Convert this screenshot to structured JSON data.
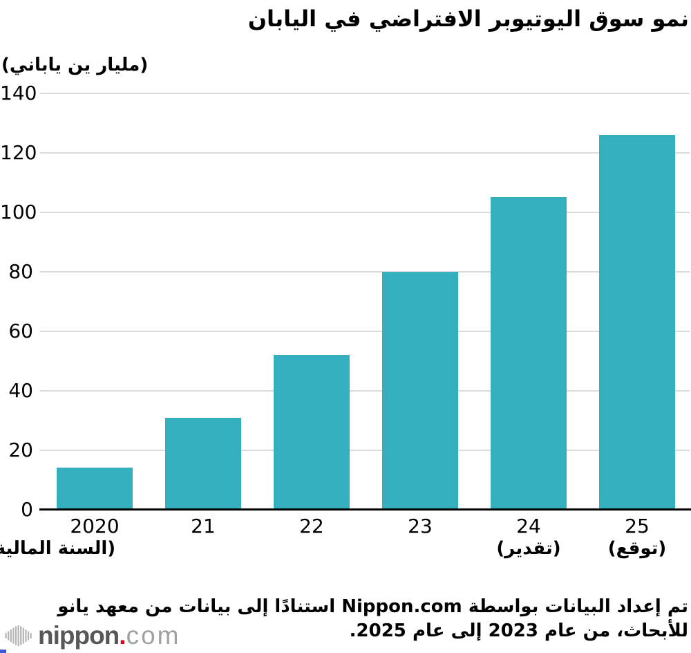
{
  "header": {
    "title": "نمو سوق اليوتيوبر الافتراضي في اليابان"
  },
  "chart_data": {
    "type": "bar",
    "title": "نمو سوق اليوتيوبر الافتراضي في اليابان",
    "ylabel": "(مليار ين ياباني)",
    "xlabel": "",
    "categories": [
      "2020",
      "21",
      "22",
      "23",
      "24",
      "25"
    ],
    "category_sublabels": [
      "(السنة المالية)",
      "",
      "",
      "",
      "(تقدير)",
      "(توقع)"
    ],
    "values": [
      14.2,
      31,
      52,
      80,
      105,
      126
    ],
    "ylim": [
      0,
      140
    ],
    "yticks": [
      0,
      20,
      40,
      60,
      80,
      100,
      120,
      140
    ],
    "grid": true,
    "legend": "none",
    "bar_color": "#33AFBE"
  },
  "colors": {
    "bar": "#33AFBE",
    "gridline": "#DBDBDB",
    "axis": "#000000",
    "text": "#000000",
    "logo_dark": "#595757",
    "logo_light": "#9FA0A0",
    "logo_dot": "#E60012",
    "corner_blue": "#3D5BD9"
  },
  "footer": {
    "source_line1": "تم إعداد البيانات بواسطة Nippon.com استنادًا إلى بيانات من معهد يانو",
    "source_line2": "للأبحاث، من عام 2023 إلى عام 2025."
  },
  "logo": {
    "name": "nippon",
    "dot": ".",
    "tld": "com"
  }
}
